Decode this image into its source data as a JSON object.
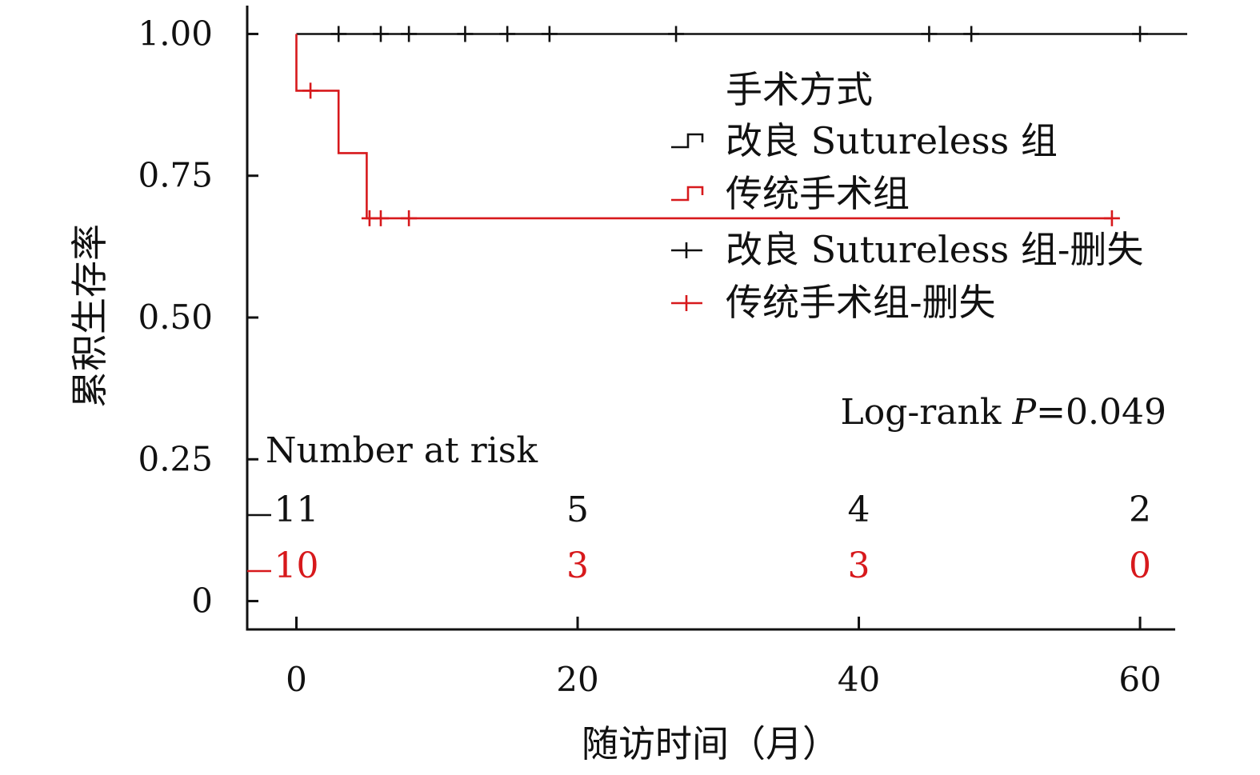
{
  "chart_data": {
    "type": "line",
    "subtype": "kaplan-meier",
    "xlabel": "随访时间（月）",
    "ylabel": "累积生存率",
    "xlim": [
      -3.5,
      62.5
    ],
    "ylim": [
      -0.05,
      1.05
    ],
    "xticks": [
      0,
      20,
      40,
      60
    ],
    "xtick_labels": [
      "0",
      "20",
      "40",
      "60"
    ],
    "yticks": [
      0,
      0.25,
      0.5,
      0.75,
      1.0
    ],
    "ytick_labels": [
      "0",
      "0.25",
      "0.50",
      "0.75",
      "1.00"
    ],
    "legend": {
      "title": "手术方式",
      "position": "top-right",
      "entries": [
        {
          "label": "改良 Sutureless 组",
          "symbol": "step",
          "color": "#111111"
        },
        {
          "label": "传统手术组",
          "symbol": "step",
          "color": "#d7191c"
        },
        {
          "label": "改良 Sutureless 组-删失",
          "symbol": "cross",
          "color": "#111111"
        },
        {
          "label": "传统手术组-删失",
          "symbol": "cross",
          "color": "#d7191c"
        }
      ]
    },
    "series": [
      {
        "name": "改良 Sutureless 组",
        "color": "#111111",
        "steps": [
          [
            0,
            1.0
          ],
          [
            63.5,
            1.0
          ]
        ],
        "censored": [
          [
            3,
            1.0
          ],
          [
            6,
            1.0
          ],
          [
            8,
            1.0
          ],
          [
            12,
            1.0
          ],
          [
            15,
            1.0
          ],
          [
            18,
            1.0
          ],
          [
            27,
            1.0
          ],
          [
            45,
            1.0
          ],
          [
            48,
            1.0
          ],
          [
            60,
            1.0
          ]
        ]
      },
      {
        "name": "传统手术组",
        "color": "#d7191c",
        "steps": [
          [
            0,
            1.0
          ],
          [
            0,
            0.9
          ],
          [
            3,
            0.9
          ],
          [
            3,
            0.79
          ],
          [
            5,
            0.79
          ],
          [
            5,
            0.675
          ],
          [
            58,
            0.675
          ]
        ],
        "censored": [
          [
            1,
            0.9
          ],
          [
            5.2,
            0.675
          ],
          [
            6,
            0.675
          ],
          [
            8,
            0.675
          ],
          [
            58,
            0.675
          ]
        ]
      }
    ],
    "risk_table": {
      "title": "Number at risk",
      "times": [
        0,
        20,
        40,
        60
      ],
      "rows": [
        {
          "group": "改良 Sutureless 组",
          "color": "#111111",
          "counts": [
            "11",
            "5",
            "4",
            "2"
          ]
        },
        {
          "group": "传统手术组",
          "color": "#d7191c",
          "counts": [
            "10",
            "3",
            "3",
            "0"
          ]
        }
      ]
    },
    "annotation": {
      "prefix": "Log-rank ",
      "italic": "P",
      "suffix": "=0.049"
    }
  }
}
